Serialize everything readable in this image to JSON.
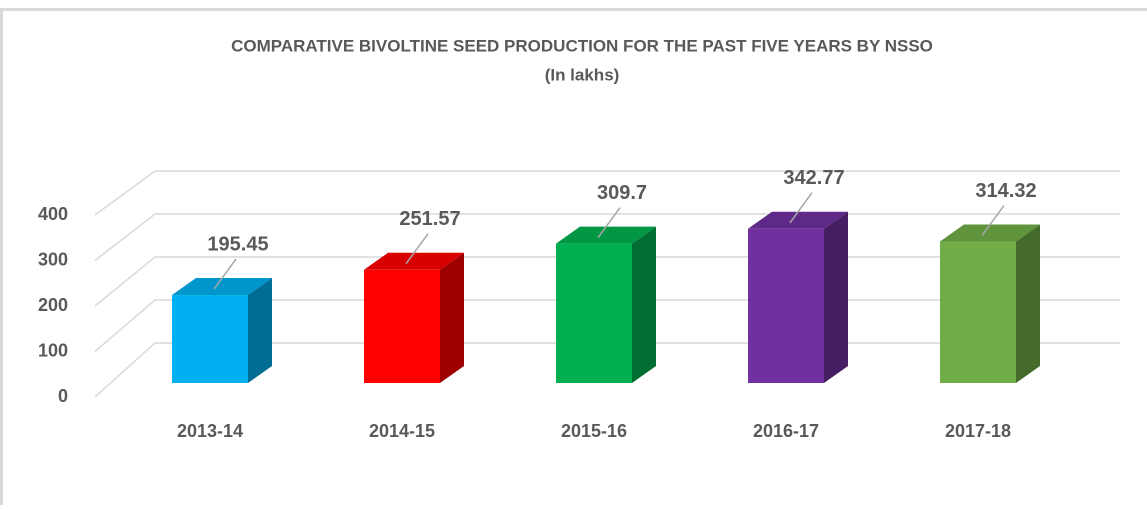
{
  "chart_data": {
    "type": "bar3d",
    "title": "COMPARATIVE BIVOLTINE SEED PRODUCTION FOR THE PAST FIVE YEARS BY NSSO",
    "subtitle": "(In lakhs)",
    "categories": [
      "2013-14",
      "2014-15",
      "2015-16",
      "2016-17",
      "2017-18"
    ],
    "values": [
      195.45,
      251.57,
      309.7,
      342.77,
      314.32
    ],
    "colors": [
      "#00b0f0",
      "#ff0000",
      "#00b050",
      "#7030a0",
      "#70ad47"
    ],
    "ylim": [
      0,
      400
    ],
    "yticks": [
      0,
      100,
      200,
      300,
      400
    ],
    "grid": true,
    "data_labels": true
  }
}
